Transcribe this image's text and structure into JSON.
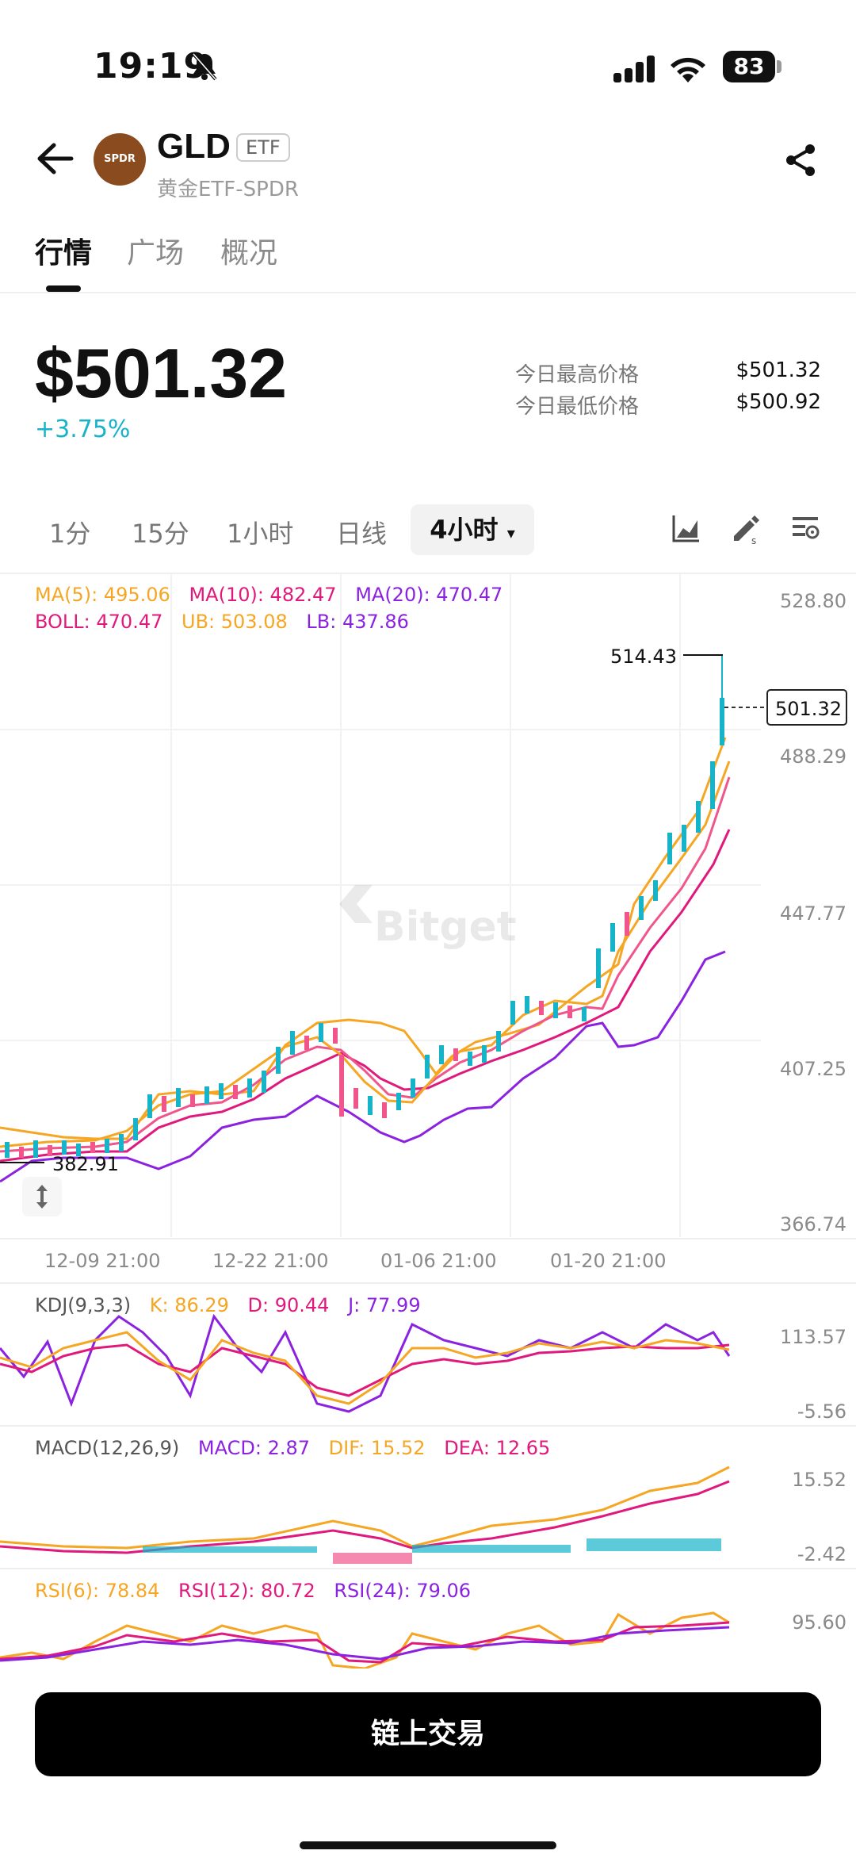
{
  "status": {
    "time": "19:19",
    "battery": "83"
  },
  "header": {
    "avatar_text": "SPDR",
    "ticker": "GLD",
    "badge": "ETF",
    "name": "黄金ETF-SPDR"
  },
  "tabs": [
    "行情",
    "广场",
    "概况"
  ],
  "quote": {
    "price": "$501.32",
    "change": "+3.75%",
    "high_label": "今日最高价格",
    "high_value": "$501.32",
    "low_label": "今日最低价格",
    "low_value": "$500.92"
  },
  "intervals": [
    "1分",
    "15分",
    "1小时",
    "日线"
  ],
  "active_interval": "4小时",
  "main_chart": {
    "legend": {
      "ma5": "MA(5): 495.06",
      "ma10": "MA(10): 482.47",
      "ma20": "MA(20): 470.47",
      "boll": "BOLL: 470.47",
      "ub": "UB: 503.08",
      "lb": "LB: 437.86"
    },
    "y_ticks": [
      "528.80",
      "488.29",
      "447.77",
      "407.25",
      "366.74"
    ],
    "x_ticks": [
      "12-09 21:00",
      "12-22 21:00",
      "01-06 21:00",
      "01-20 21:00"
    ],
    "high_marker": "514.43",
    "low_marker": "382.91",
    "current_marker": "501.32",
    "watermark": "Bitget"
  },
  "kdj": {
    "title": "KDJ(9,3,3)",
    "k": "K: 86.29",
    "d": "D: 90.44",
    "j": "J: 77.99",
    "y_ticks": [
      "113.57",
      "-5.56"
    ]
  },
  "macd": {
    "title": "MACD(12,26,9)",
    "macd": "MACD: 2.87",
    "dif": "DIF: 15.52",
    "dea": "DEA: 12.65",
    "y_ticks": [
      "15.52",
      "-2.42"
    ]
  },
  "rsi": {
    "rsi6": "RSI(6): 78.84",
    "rsi12": "RSI(12): 80.72",
    "rsi24": "RSI(24): 79.06",
    "y_ticks": [
      "95.60"
    ]
  },
  "trade_button": "链上交易",
  "colors": {
    "orange": "#f5a623",
    "magenta": "#e0197d",
    "purple": "#8b22e0",
    "teal": "#17b3c9",
    "pink": "#f0568c"
  }
}
